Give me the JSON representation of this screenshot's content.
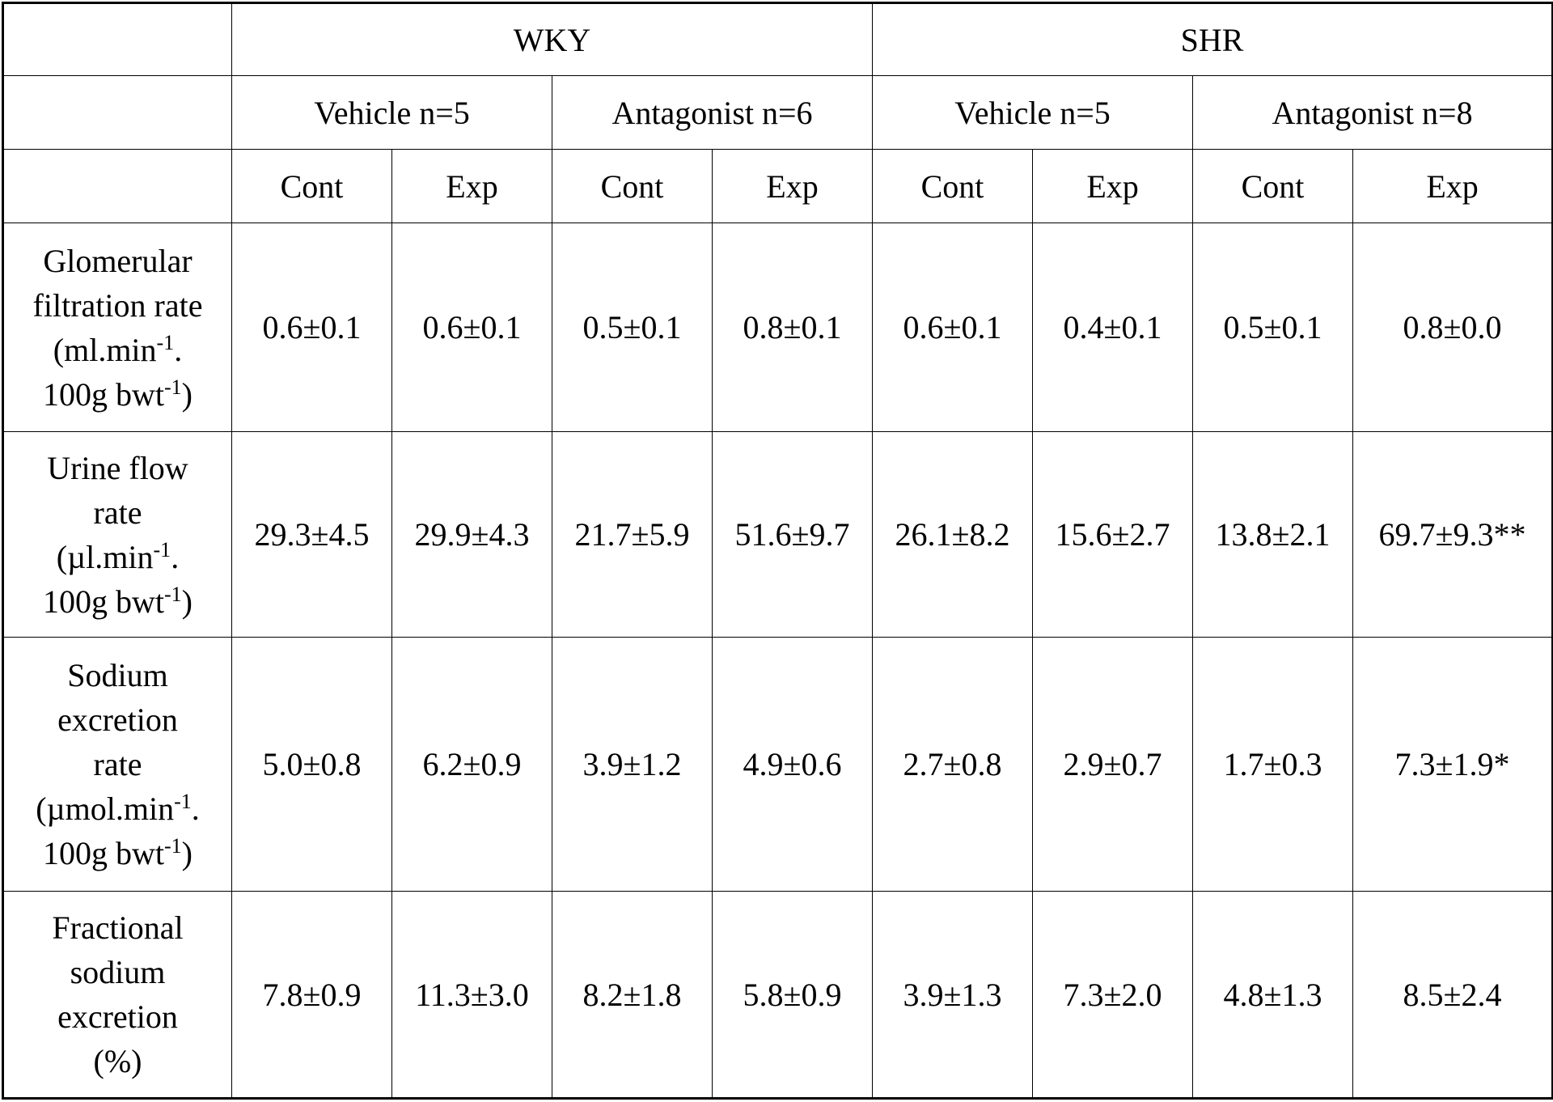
{
  "header": {
    "groups": [
      "WKY",
      "SHR"
    ],
    "subgroups": [
      "Vehicle n=5",
      "Antagonist n=6",
      "Vehicle n=5",
      "Antagonist n=8"
    ],
    "columns": [
      "Cont",
      "Exp",
      "Cont",
      "Exp",
      "Cont",
      "Exp",
      "Cont",
      "Exp"
    ]
  },
  "rows": [
    {
      "label_lines": [
        "Glomerular",
        "filtration rate",
        "(ml.min",
        "-1",
        ".",
        "100g bwt",
        "-1",
        ")"
      ],
      "values": [
        "0.6±0.1",
        "0.6±0.1",
        "0.5±0.1",
        "0.8±0.1",
        "0.6±0.1",
        "0.4±0.1",
        "0.5±0.1",
        "0.8±0.0"
      ]
    },
    {
      "label_lines": [
        "Urine flow",
        "rate",
        "(µl.min",
        "-1",
        ".",
        "100g bwt",
        "-1",
        ")"
      ],
      "values": [
        "29.3±4.5",
        "29.9±4.3",
        "21.7±5.9",
        "51.6±9.7",
        "26.1±8.2",
        "15.6±2.7",
        "13.8±2.1",
        "69.7±9.3**"
      ]
    },
    {
      "label_lines": [
        "Sodium",
        "excretion",
        "rate",
        "(µmol.min",
        "-1",
        ".",
        "100g bwt",
        "-1",
        ")"
      ],
      "values": [
        "5.0±0.8",
        "6.2±0.9",
        "3.9±1.2",
        "4.9±0.6",
        "2.7±0.8",
        "2.9±0.7",
        "1.7±0.3",
        "7.3±1.9*"
      ]
    },
    {
      "label_lines": [
        "Fractional",
        "sodium",
        "excretion",
        "(%)"
      ],
      "values": [
        "7.8±0.9",
        "11.3±3.0",
        "8.2±1.8",
        "5.8±0.9",
        "3.9±1.3",
        "7.3±2.0",
        "4.8±1.3",
        "8.5±2.4"
      ]
    }
  ]
}
